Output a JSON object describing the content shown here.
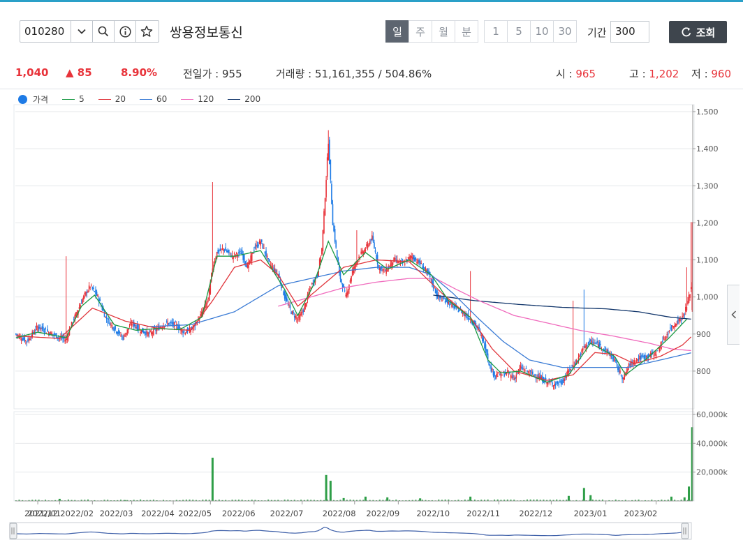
{
  "toolbar": {
    "code": "010280",
    "stock_name": "쌍용정보통신",
    "timeframes": [
      {
        "label": "일",
        "active": true
      },
      {
        "label": "주",
        "active": false
      },
      {
        "label": "월",
        "active": false
      },
      {
        "label": "분",
        "active": false
      }
    ],
    "minutes": [
      "1",
      "5",
      "10",
      "30"
    ],
    "period_label": "기간",
    "period_value": "300",
    "query_label": "조회"
  },
  "info": {
    "price": "1,040",
    "change": "85",
    "change_pct": "8.90%",
    "prev_close": "전일가 : 955",
    "volume": "거래량 : 51,161,355 / 504.86%",
    "open_label": "시 : ",
    "open_value": "965",
    "high_label": "고 : ",
    "high_value": "1,202",
    "low_label": "저 : ",
    "low_value": "960"
  },
  "legend": [
    {
      "label": "가격",
      "color": "#1e7be6",
      "type": "dot"
    },
    {
      "label": "5",
      "color": "#1a9a44",
      "type": "line"
    },
    {
      "label": "20",
      "color": "#e0343a",
      "type": "line"
    },
    {
      "label": "60",
      "color": "#3a7bd5",
      "type": "line"
    },
    {
      "label": "120",
      "color": "#f06bbd",
      "type": "line"
    },
    {
      "label": "200",
      "color": "#12366b",
      "type": "line"
    }
  ],
  "colors": {
    "up": "#e8333a",
    "down": "#1e7be6",
    "volume": "#2e9e47",
    "navigator": "#3d5fa8"
  },
  "chart_data": {
    "type": "candlestick",
    "price_axis": {
      "ticks": [
        "1,500",
        "1,400",
        "1,300",
        "1,200",
        "1,100",
        "1,000",
        "900",
        "800"
      ],
      "ylim": [
        700,
        1500
      ]
    },
    "volume_axis": {
      "ticks": [
        "60,000k",
        "40,000k",
        "20,000k"
      ],
      "ylim": [
        0,
        60000
      ]
    },
    "x_ticks": [
      "2021/12",
      "2022/01",
      "2022/02",
      "2022/03",
      "2022/04",
      "2022/05",
      "2022/06",
      "2022/07",
      "2022/08",
      "2022/09",
      "2022/10",
      "2022/11",
      "2022/12",
      "2023/01",
      "2023/02"
    ],
    "price_path": [
      [
        0,
        900
      ],
      [
        10,
        880
      ],
      [
        20,
        920
      ],
      [
        30,
        905
      ],
      [
        40,
        890
      ],
      [
        46,
        885
      ],
      [
        50,
        920
      ],
      [
        56,
        960
      ],
      [
        62,
        1000
      ],
      [
        68,
        1030
      ],
      [
        75,
        1000
      ],
      [
        82,
        945
      ],
      [
        90,
        915
      ],
      [
        98,
        890
      ],
      [
        106,
        930
      ],
      [
        114,
        910
      ],
      [
        122,
        900
      ],
      [
        130,
        915
      ],
      [
        138,
        930
      ],
      [
        146,
        925
      ],
      [
        154,
        905
      ],
      [
        162,
        915
      ],
      [
        170,
        955
      ],
      [
        176,
        995
      ],
      [
        180,
        1080
      ],
      [
        184,
        1120
      ],
      [
        190,
        1130
      ],
      [
        198,
        1110
      ],
      [
        206,
        1120
      ],
      [
        212,
        1080
      ],
      [
        218,
        1130
      ],
      [
        224,
        1150
      ],
      [
        232,
        1090
      ],
      [
        240,
        1060
      ],
      [
        246,
        1000
      ],
      [
        252,
        960
      ],
      [
        258,
        940
      ],
      [
        264,
        970
      ],
      [
        270,
        1030
      ],
      [
        276,
        1060
      ],
      [
        280,
        1130
      ],
      [
        284,
        1320
      ],
      [
        286,
        1420
      ],
      [
        290,
        1200
      ],
      [
        296,
        1060
      ],
      [
        302,
        1000
      ],
      [
        308,
        1070
      ],
      [
        314,
        1110
      ],
      [
        320,
        1130
      ],
      [
        326,
        1160
      ],
      [
        332,
        1080
      ],
      [
        338,
        1070
      ],
      [
        346,
        1100
      ],
      [
        354,
        1090
      ],
      [
        362,
        1110
      ],
      [
        370,
        1090
      ],
      [
        378,
        1060
      ],
      [
        386,
        1000
      ],
      [
        394,
        990
      ],
      [
        400,
        975
      ],
      [
        408,
        960
      ],
      [
        416,
        940
      ],
      [
        424,
        910
      ],
      [
        430,
        860
      ],
      [
        434,
        810
      ],
      [
        438,
        790
      ],
      [
        444,
        790
      ],
      [
        450,
        795
      ],
      [
        456,
        780
      ],
      [
        462,
        810
      ],
      [
        470,
        795
      ],
      [
        478,
        785
      ],
      [
        486,
        770
      ],
      [
        494,
        765
      ],
      [
        500,
        770
      ],
      [
        506,
        800
      ],
      [
        514,
        830
      ],
      [
        520,
        865
      ],
      [
        526,
        880
      ],
      [
        534,
        870
      ],
      [
        542,
        850
      ],
      [
        548,
        830
      ],
      [
        552,
        800
      ],
      [
        556,
        780
      ],
      [
        562,
        820
      ],
      [
        570,
        835
      ],
      [
        578,
        840
      ],
      [
        586,
        850
      ],
      [
        592,
        880
      ],
      [
        598,
        910
      ],
      [
        604,
        930
      ],
      [
        610,
        945
      ],
      [
        614,
        975
      ],
      [
        616,
        1000
      ],
      [
        619,
        1040
      ]
    ],
    "ma5": [
      [
        0,
        890
      ],
      [
        20,
        905
      ],
      [
        46,
        890
      ],
      [
        60,
        975
      ],
      [
        72,
        1005
      ],
      [
        90,
        925
      ],
      [
        110,
        910
      ],
      [
        130,
        915
      ],
      [
        150,
        912
      ],
      [
        170,
        945
      ],
      [
        184,
        1110
      ],
      [
        200,
        1110
      ],
      [
        224,
        1125
      ],
      [
        246,
        1020
      ],
      [
        258,
        950
      ],
      [
        272,
        1030
      ],
      [
        286,
        1150
      ],
      [
        300,
        1060
      ],
      [
        320,
        1120
      ],
      [
        340,
        1075
      ],
      [
        360,
        1100
      ],
      [
        380,
        1060
      ],
      [
        396,
        990
      ],
      [
        416,
        945
      ],
      [
        432,
        830
      ],
      [
        444,
        795
      ],
      [
        462,
        800
      ],
      [
        486,
        770
      ],
      [
        506,
        790
      ],
      [
        526,
        875
      ],
      [
        548,
        840
      ],
      [
        558,
        790
      ],
      [
        578,
        835
      ],
      [
        598,
        890
      ],
      [
        614,
        940
      ]
    ],
    "ma20": [
      [
        0,
        895
      ],
      [
        40,
        888
      ],
      [
        70,
        970
      ],
      [
        100,
        935
      ],
      [
        130,
        915
      ],
      [
        160,
        910
      ],
      [
        180,
        990
      ],
      [
        200,
        1080
      ],
      [
        224,
        1100
      ],
      [
        240,
        1060
      ],
      [
        258,
        975
      ],
      [
        276,
        1020
      ],
      [
        300,
        1080
      ],
      [
        330,
        1100
      ],
      [
        360,
        1095
      ],
      [
        390,
        1010
      ],
      [
        416,
        945
      ],
      [
        436,
        860
      ],
      [
        456,
        800
      ],
      [
        486,
        775
      ],
      [
        510,
        790
      ],
      [
        530,
        850
      ],
      [
        548,
        845
      ],
      [
        566,
        820
      ],
      [
        590,
        840
      ],
      [
        610,
        870
      ],
      [
        619,
        895
      ]
    ],
    "ma60": [
      [
        120,
        920
      ],
      [
        160,
        925
      ],
      [
        200,
        960
      ],
      [
        240,
        1030
      ],
      [
        270,
        1050
      ],
      [
        300,
        1070
      ],
      [
        330,
        1080
      ],
      [
        360,
        1080
      ],
      [
        380,
        1060
      ],
      [
        400,
        1010
      ],
      [
        424,
        940
      ],
      [
        446,
        880
      ],
      [
        470,
        830
      ],
      [
        500,
        810
      ],
      [
        530,
        810
      ],
      [
        560,
        810
      ],
      [
        590,
        830
      ],
      [
        619,
        850
      ]
    ],
    "ma120": [
      [
        240,
        975
      ],
      [
        270,
        1000
      ],
      [
        300,
        1025
      ],
      [
        330,
        1040
      ],
      [
        360,
        1050
      ],
      [
        384,
        1050
      ],
      [
        400,
        1025
      ],
      [
        424,
        990
      ],
      [
        456,
        950
      ],
      [
        486,
        930
      ],
      [
        516,
        910
      ],
      [
        546,
        895
      ],
      [
        580,
        875
      ],
      [
        600,
        860
      ],
      [
        619,
        855
      ]
    ],
    "ma200": [
      [
        382,
        1005
      ],
      [
        420,
        990
      ],
      [
        460,
        980
      ],
      [
        500,
        972
      ],
      [
        540,
        968
      ],
      [
        570,
        960
      ],
      [
        600,
        945
      ],
      [
        619,
        940
      ]
    ],
    "spikes": [
      [
        46,
        1110
      ],
      [
        180,
        1310
      ],
      [
        286,
        1450
      ],
      [
        312,
        1180
      ],
      [
        416,
        1070
      ],
      [
        510,
        990
      ],
      [
        520,
        1020
      ],
      [
        614,
        1080
      ],
      [
        618,
        1202
      ]
    ],
    "volume_spikes": [
      [
        40,
        1500
      ],
      [
        100,
        600
      ],
      [
        180,
        30000
      ],
      [
        284,
        18000
      ],
      [
        288,
        14000
      ],
      [
        300,
        2000
      ],
      [
        320,
        3000
      ],
      [
        340,
        2500
      ],
      [
        370,
        1800
      ],
      [
        416,
        3000
      ],
      [
        506,
        3500
      ],
      [
        520,
        9000
      ],
      [
        526,
        4000
      ],
      [
        600,
        3000
      ],
      [
        612,
        2500
      ],
      [
        616,
        10000
      ],
      [
        619,
        51161
      ]
    ]
  }
}
